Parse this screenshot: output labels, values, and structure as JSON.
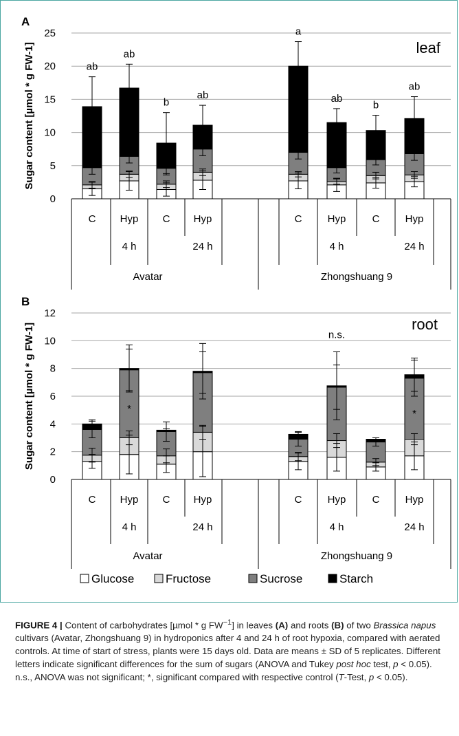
{
  "chart_data": [
    {
      "panel": "A",
      "tissue": "leaf",
      "type": "bar",
      "stacked": true,
      "ylabel": "Sugar content [µmol * g FW-1]",
      "ylim": [
        0,
        25
      ],
      "yticks": [
        "0",
        "5",
        "10",
        "15",
        "20",
        "25"
      ],
      "categories": [
        "C",
        "Hyp",
        "C",
        "Hyp",
        "C",
        "Hyp",
        "C",
        "Hyp"
      ],
      "timepoints": [
        "4 h",
        "24 h",
        "4 h",
        "24 h"
      ],
      "cultivars": [
        "Avatar",
        "Zhongshuang 9"
      ],
      "series": [
        {
          "name": "Glucose",
          "values": [
            1.5,
            2.7,
            1.4,
            2.8,
            2.7,
            2.1,
            2.4,
            2.6
          ],
          "sd": [
            1.0,
            1.4,
            1.0,
            1.4,
            1.2,
            1.0,
            0.8,
            0.8
          ]
        },
        {
          "name": "Fructose",
          "values": [
            0.6,
            1.0,
            0.8,
            1.2,
            1.0,
            0.5,
            1.1,
            1.0
          ],
          "sd": [
            0.5,
            0.5,
            0.5,
            0.5,
            0.4,
            0.4,
            0.5,
            0.5
          ]
        },
        {
          "name": "Sucrose",
          "values": [
            2.6,
            2.7,
            2.4,
            3.5,
            3.3,
            2.1,
            2.4,
            3.2
          ],
          "sd": [
            1.0,
            1.0,
            1.0,
            1.0,
            1.0,
            0.8,
            0.8,
            1.0
          ]
        },
        {
          "name": "Starch",
          "values": [
            9.2,
            10.3,
            3.8,
            3.6,
            13.0,
            6.8,
            4.4,
            5.3
          ],
          "sd": [
            4.5,
            3.6,
            4.6,
            3.0,
            3.7,
            2.1,
            2.3,
            3.3
          ]
        }
      ],
      "significance": [
        "ab",
        "ab",
        "b",
        "ab",
        "a",
        "ab",
        "b",
        "ab"
      ]
    },
    {
      "panel": "B",
      "tissue": "root",
      "type": "bar",
      "stacked": true,
      "ylabel": "Sugar content [µmol * g FW-1]",
      "ylim": [
        0,
        12
      ],
      "yticks": [
        "0",
        "2",
        "4",
        "6",
        "8",
        "10",
        "12"
      ],
      "categories": [
        "C",
        "Hyp",
        "C",
        "Hyp",
        "C",
        "Hyp",
        "C",
        "Hyp"
      ],
      "timepoints": [
        "4 h",
        "24 h",
        "4 h",
        "24 h"
      ],
      "cultivars": [
        "Avatar",
        "Zhongshuang 9"
      ],
      "series": [
        {
          "name": "Glucose",
          "values": [
            1.3,
            1.8,
            1.1,
            2.0,
            1.3,
            1.6,
            0.9,
            1.7
          ],
          "sd": [
            0.5,
            1.4,
            0.6,
            1.8,
            0.6,
            1.0,
            0.3,
            1.0
          ]
        },
        {
          "name": "Fructose",
          "values": [
            0.45,
            1.2,
            0.6,
            1.4,
            0.35,
            1.2,
            0.35,
            1.2
          ],
          "sd": [
            0.5,
            0.5,
            0.5,
            0.5,
            0.3,
            0.5,
            0.25,
            0.4
          ]
        },
        {
          "name": "Sucrose",
          "values": [
            1.85,
            4.9,
            1.75,
            4.3,
            1.25,
            3.85,
            1.45,
            4.4
          ],
          "sd": [
            0.6,
            1.5,
            0.7,
            1.5,
            0.5,
            1.6,
            0.3,
            1.3
          ]
        },
        {
          "name": "Starch",
          "values": [
            0.4,
            0.1,
            0.1,
            0.1,
            0.35,
            0.1,
            0.2,
            0.25
          ],
          "sd": [
            0.3,
            1.7,
            0.1,
            2.0,
            0.2,
            2.45,
            0.1,
            1.2
          ]
        }
      ],
      "asterisks": [
        false,
        true,
        false,
        false,
        false,
        false,
        false,
        true
      ],
      "note": "n.s."
    }
  ],
  "legend": [
    "Glucose",
    "Fructose",
    "Sucrose",
    "Starch"
  ],
  "colors": {
    "Glucose": "#ffffff",
    "Fructose": "#d9d9d9",
    "Sucrose": "#7f7f7f",
    "Starch": "#000000",
    "frame": "#4aa6a0"
  },
  "caption": {
    "label": "FIGURE 4 |",
    "s1": " Content of carbohydrates [µmol * g FW",
    "sup1": "−1",
    "s2": "] in leaves ",
    "bA": "(A)",
    "s3": " and roots ",
    "bB": "(B)",
    "s4": " of two ",
    "species": "Brassica napus",
    "s5": " cultivars (Avatar, Zhongshuang 9) in hydroponics after 4 and 24 h of root hypoxia, compared with aerated controls. At time of start of stress, plants were 15 days old. Data are means ± SD of 5 replicates. Different letters indicate significant differences for the sum of sugars (ANOVA and Tukey ",
    "posthoc": "post hoc",
    "s6": " test, ",
    "p1": "p",
    "s7": " < 0.05). n.s., ANOVA was not significant; *, significant compared with respective control (",
    "T": "T",
    "s8": "-Test, ",
    "p2": "p",
    "s9": " < 0.05)."
  }
}
